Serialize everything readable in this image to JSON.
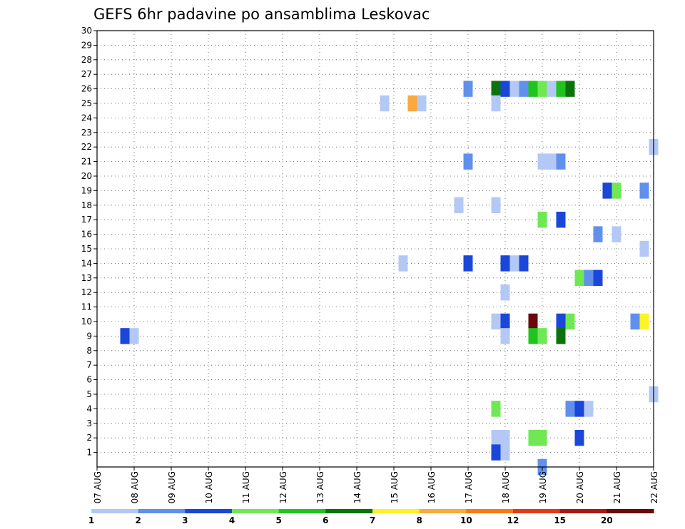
{
  "chart_data": {
    "type": "heatmap",
    "title": "GEFS 6hr padavine po ansamblima Leskovac",
    "y_ticks": [
      "1",
      "2",
      "3",
      "4",
      "5",
      "6",
      "7",
      "8",
      "9",
      "10",
      "11",
      "12",
      "13",
      "14",
      "15",
      "16",
      "17",
      "18",
      "19",
      "20",
      "21",
      "22",
      "23",
      "24",
      "25",
      "26",
      "27",
      "28",
      "29",
      "30"
    ],
    "x_ticks": [
      "07 AUG",
      "08 AUG",
      "09 AUG",
      "10 AUG",
      "11 AUG",
      "12 AUG",
      "13 AUG",
      "14 AUG",
      "15 AUG",
      "16 AUG",
      "17 AUG",
      "18 AUG",
      "19 AUG",
      "20 AUG",
      "21 AUG",
      "22 AUG"
    ],
    "ylim": [
      0,
      30
    ],
    "xlim_days": [
      0,
      15
    ],
    "grid": true,
    "colorbar": {
      "labels": [
        "1",
        "2",
        "3",
        "4",
        "5",
        "6",
        "7",
        "8",
        "10",
        "12",
        "15",
        "20"
      ],
      "colors": [
        "#b4c8f5",
        "#6090ec",
        "#1a46d9",
        "#6fe854",
        "#20c41d",
        "#0b730c",
        "#fff227",
        "#faaa3a",
        "#f77b16",
        "#e23c17",
        "#a71913",
        "#680a0a"
      ]
    },
    "cells": [
      {
        "x": 0.75,
        "y": 9,
        "c": 2
      },
      {
        "x": 1.0,
        "y": 9,
        "c": 0
      },
      {
        "x": 7.75,
        "y": 25,
        "c": 0
      },
      {
        "x": 8.25,
        "y": 14,
        "c": 0
      },
      {
        "x": 8.5,
        "y": 25,
        "c": 7
      },
      {
        "x": 8.75,
        "y": 25,
        "c": 0
      },
      {
        "x": 9.75,
        "y": 18,
        "c": 0
      },
      {
        "x": 10.0,
        "y": 26,
        "c": 1
      },
      {
        "x": 10.0,
        "y": 21,
        "c": 1
      },
      {
        "x": 10.0,
        "y": 14,
        "c": 2
      },
      {
        "x": 10.75,
        "y": 26,
        "c": 5
      },
      {
        "x": 10.75,
        "y": 25,
        "c": 0
      },
      {
        "x": 10.75,
        "y": 18,
        "c": 0
      },
      {
        "x": 10.75,
        "y": 10,
        "c": 0
      },
      {
        "x": 10.75,
        "y": 4,
        "c": 3
      },
      {
        "x": 10.75,
        "y": 2,
        "c": 0
      },
      {
        "x": 10.75,
        "y": 1,
        "c": 2
      },
      {
        "x": 11.0,
        "y": 26,
        "c": 2
      },
      {
        "x": 11.0,
        "y": 14,
        "c": 2
      },
      {
        "x": 11.0,
        "y": 12,
        "c": 0
      },
      {
        "x": 11.0,
        "y": 10,
        "c": 2
      },
      {
        "x": 11.0,
        "y": 9,
        "c": 0
      },
      {
        "x": 11.0,
        "y": 2,
        "c": 0
      },
      {
        "x": 11.0,
        "y": 1,
        "c": 0
      },
      {
        "x": 11.25,
        "y": 26,
        "c": 0
      },
      {
        "x": 11.25,
        "y": 14,
        "c": 0
      },
      {
        "x": 11.5,
        "y": 26,
        "c": 1
      },
      {
        "x": 11.5,
        "y": 14,
        "c": 2
      },
      {
        "x": 11.75,
        "y": 26,
        "c": 4
      },
      {
        "x": 11.75,
        "y": 10,
        "c": 11
      },
      {
        "x": 11.75,
        "y": 9,
        "c": 4
      },
      {
        "x": 11.75,
        "y": 2,
        "c": 3
      },
      {
        "x": 12.0,
        "y": 26,
        "c": 3
      },
      {
        "x": 12.0,
        "y": 21,
        "c": 0
      },
      {
        "x": 12.0,
        "y": 17,
        "c": 3
      },
      {
        "x": 12.0,
        "y": 9,
        "c": 3
      },
      {
        "x": 12.0,
        "y": 2,
        "c": 3
      },
      {
        "x": 12.0,
        "y": 0,
        "c": 1
      },
      {
        "x": 12.25,
        "y": 26,
        "c": 0
      },
      {
        "x": 12.25,
        "y": 21,
        "c": 0
      },
      {
        "x": 12.5,
        "y": 26,
        "c": 4
      },
      {
        "x": 12.5,
        "y": 21,
        "c": 1
      },
      {
        "x": 12.5,
        "y": 17,
        "c": 2
      },
      {
        "x": 12.5,
        "y": 10,
        "c": 2
      },
      {
        "x": 12.5,
        "y": 9,
        "c": 5
      },
      {
        "x": 12.75,
        "y": 26,
        "c": 5
      },
      {
        "x": 12.75,
        "y": 10,
        "c": 3
      },
      {
        "x": 12.75,
        "y": 4,
        "c": 1
      },
      {
        "x": 13.0,
        "y": 13,
        "c": 3
      },
      {
        "x": 13.0,
        "y": 4,
        "c": 2
      },
      {
        "x": 13.0,
        "y": 2,
        "c": 2
      },
      {
        "x": 13.25,
        "y": 13,
        "c": 1
      },
      {
        "x": 13.25,
        "y": 4,
        "c": 0
      },
      {
        "x": 13.5,
        "y": 16,
        "c": 1
      },
      {
        "x": 13.5,
        "y": 13,
        "c": 2
      },
      {
        "x": 13.75,
        "y": 19,
        "c": 2
      },
      {
        "x": 14.0,
        "y": 19,
        "c": 3
      },
      {
        "x": 14.0,
        "y": 16,
        "c": 0
      },
      {
        "x": 14.5,
        "y": 10,
        "c": 1
      },
      {
        "x": 14.75,
        "y": 19,
        "c": 1
      },
      {
        "x": 14.75,
        "y": 15,
        "c": 0
      },
      {
        "x": 14.75,
        "y": 10,
        "c": 6
      },
      {
        "x": 15.0,
        "y": 22,
        "c": 0
      },
      {
        "x": 15.0,
        "y": 5,
        "c": 0
      }
    ]
  }
}
